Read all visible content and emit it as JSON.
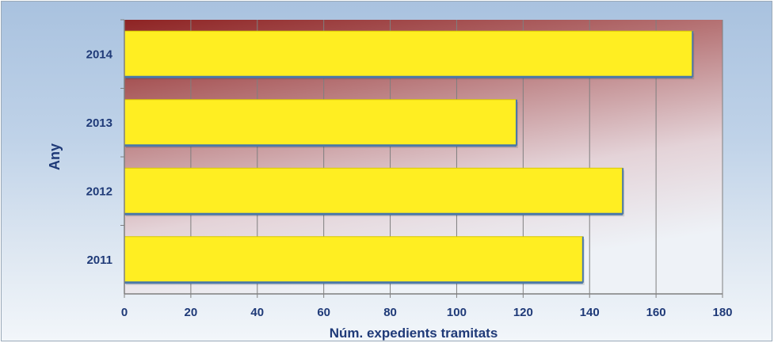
{
  "chart_data": {
    "type": "bar",
    "orientation": "horizontal",
    "categories": [
      "2011",
      "2012",
      "2013",
      "2014"
    ],
    "series": [
      {
        "values": [
          138,
          150,
          118,
          171
        ]
      }
    ],
    "title": "",
    "xlabel": "Núm. expedients tramitats",
    "ylabel": "Any",
    "xlim": [
      0,
      180
    ],
    "xticks": [
      "0",
      "20",
      "40",
      "60",
      "80",
      "100",
      "120",
      "140",
      "160",
      "180"
    ],
    "grid": true,
    "legend": "none",
    "colors": {
      "bar_fill": "#ffee22",
      "bar_edge": "#4a78a8",
      "plot_top": "#8e2323",
      "plot_bottom": "#e7eef6",
      "text": "#1f3a78",
      "grid": "#7f7f7f"
    }
  }
}
